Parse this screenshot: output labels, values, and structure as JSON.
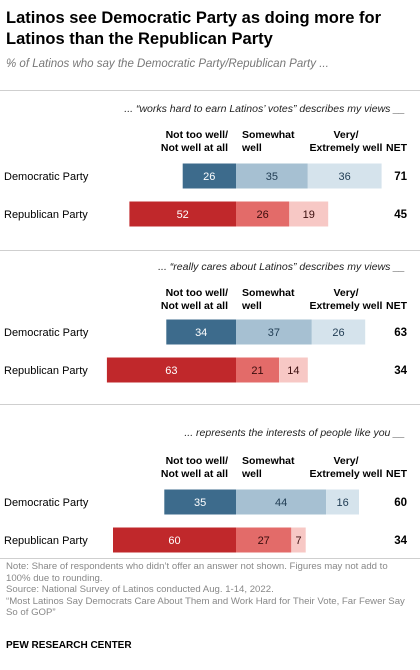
{
  "title": "Latinos see Democratic Party as doing more for Latinos than the Republican Party",
  "subtitle": "% of Latinos who say the Democratic Party/Republican Party ...",
  "colors": {
    "not_well": {
      "dem": "#3d6b8c",
      "rep": "#c0282b"
    },
    "somewhat": {
      "dem": "#a6c0d2",
      "rep": "#e36b69"
    },
    "very": {
      "dem": "#d5e3ec",
      "rep": "#f7c8c5"
    }
  },
  "chart_data": [
    {
      "type": "bar",
      "orientation": "horizontal-diverging",
      "question": "... “works hard to earn Latinos’ votes” describes my views __",
      "column_headers": {
        "not_well": [
          "Not too well/",
          "Not well at all"
        ],
        "somewhat": [
          "Somewhat",
          "well"
        ],
        "very": [
          "Very/",
          "Extremely well"
        ],
        "net": "NET"
      },
      "categories": [
        "Democratic Party",
        "Republican Party"
      ],
      "series": [
        {
          "name": "Not too well/Not well at all",
          "values": [
            26,
            52
          ]
        },
        {
          "name": "Somewhat well",
          "values": [
            35,
            26
          ]
        },
        {
          "name": "Very/Extremely well",
          "values": [
            36,
            19
          ]
        }
      ],
      "net": [
        71,
        45
      ]
    },
    {
      "type": "bar",
      "orientation": "horizontal-diverging",
      "question": "... “really cares about Latinos” describes my views __",
      "column_headers": {
        "not_well": [
          "Not too well/",
          "Not well at all"
        ],
        "somewhat": [
          "Somewhat",
          "well"
        ],
        "very": [
          "Very/",
          "Extremely well"
        ],
        "net": "NET"
      },
      "categories": [
        "Democratic Party",
        "Republican Party"
      ],
      "series": [
        {
          "name": "Not too well/Not well at all",
          "values": [
            34,
            63
          ]
        },
        {
          "name": "Somewhat well",
          "values": [
            37,
            21
          ]
        },
        {
          "name": "Very/Extremely well",
          "values": [
            26,
            14
          ]
        }
      ],
      "net": [
        63,
        34
      ]
    },
    {
      "type": "bar",
      "orientation": "horizontal-diverging",
      "question": "... represents the interests of people like you __",
      "column_headers": {
        "not_well": [
          "Not too well/",
          "Not well at all"
        ],
        "somewhat": [
          "Somewhat",
          "well"
        ],
        "very": [
          "Very/",
          "Extremely well"
        ],
        "net": "NET"
      },
      "categories": [
        "Democratic Party",
        "Republican Party"
      ],
      "series": [
        {
          "name": "Not too well/Not well at all",
          "values": [
            35,
            60
          ]
        },
        {
          "name": "Somewhat well",
          "values": [
            44,
            27
          ]
        },
        {
          "name": "Very/Extremely well",
          "values": [
            16,
            7
          ]
        }
      ],
      "net": [
        60,
        34
      ]
    }
  ],
  "notes": {
    "note": "Note: Share of respondents who didn’t offer an answer not shown. Figures may not add to 100% due to rounding.",
    "source": "Source: National Survey of Latinos conducted Aug. 1-14, 2022.",
    "report": "“Most Latinos Say Democrats Care About Them and Work Hard for Their Vote, Far Fewer Say So of GOP”",
    "org": "PEW RESEARCH CENTER"
  }
}
